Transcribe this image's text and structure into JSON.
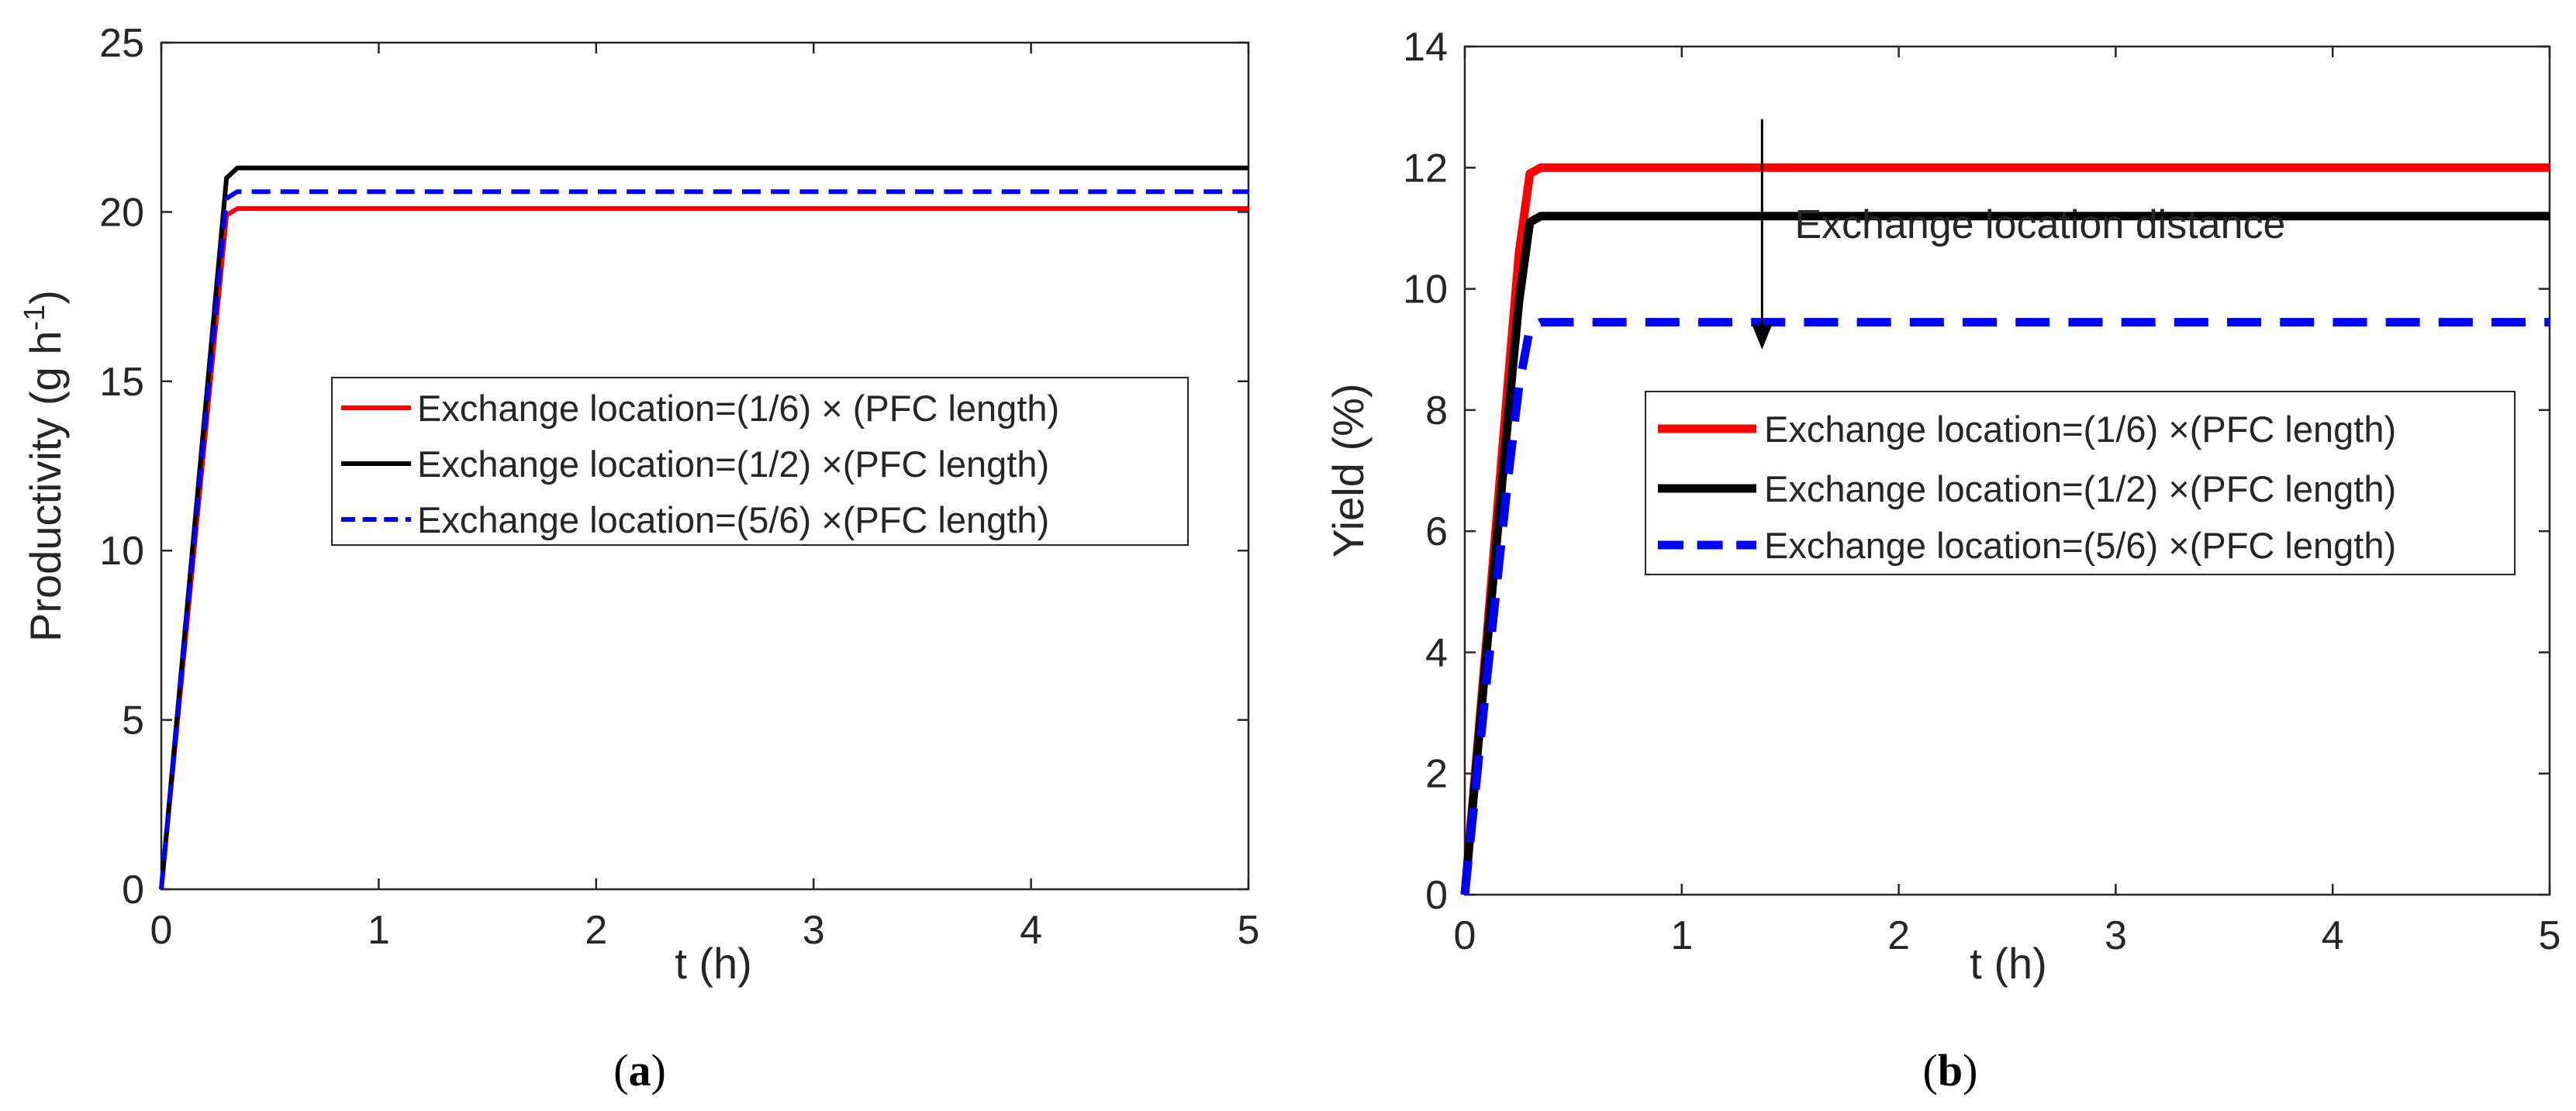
{
  "chart_data": [
    {
      "type": "line",
      "panel": "a",
      "caption": "a",
      "xlabel": "t (h)",
      "ylabel": "Productivity (g h",
      "ylabel_sup": "-1",
      "ylabel_close": ")",
      "xlim": [
        0,
        5
      ],
      "ylim": [
        0,
        25
      ],
      "xticks": [
        0,
        1,
        2,
        3,
        4,
        5
      ],
      "yticks": [
        0,
        5,
        10,
        15,
        20,
        25
      ],
      "grid": false,
      "legend_position": "center",
      "series": [
        {
          "name": "Exchange location=(1/6) × (PFC length)",
          "color": "#ff0000",
          "dash": "solid",
          "x": [
            0,
            0.3,
            0.35,
            5
          ],
          "y": [
            0,
            19.9,
            20.1,
            20.1
          ]
        },
        {
          "name": "Exchange location=(1/2) ×(PFC length)",
          "color": "#000000",
          "dash": "solid",
          "x": [
            0,
            0.3,
            0.35,
            5
          ],
          "y": [
            0,
            21.0,
            21.3,
            21.3
          ]
        },
        {
          "name": "Exchange location=(5/6) ×(PFC length)",
          "color": "#0000ff",
          "dash": "dashed",
          "x": [
            0,
            0.3,
            0.35,
            5
          ],
          "y": [
            0,
            20.4,
            20.6,
            20.6
          ]
        }
      ]
    },
    {
      "type": "line",
      "panel": "b",
      "caption": "b",
      "xlabel": "t (h)",
      "ylabel": "Yield (%)",
      "ylabel_sup": "",
      "ylabel_close": "",
      "xlim": [
        0,
        5
      ],
      "ylim": [
        0,
        14
      ],
      "xticks": [
        0,
        1,
        2,
        3,
        4,
        5
      ],
      "yticks": [
        0,
        2,
        4,
        6,
        8,
        10,
        12,
        14
      ],
      "grid": false,
      "legend_position": "center-right",
      "annotation": {
        "text": "Exchange location distance",
        "arrow_x": 1.37,
        "arrow_from_y": 12.8,
        "arrow_to_y": 9.0
      },
      "series": [
        {
          "name": "Exchange location=(1/6) ×(PFC length)",
          "color": "#ff0000",
          "dash": "solid",
          "x": [
            0,
            0.1,
            0.2,
            0.25,
            0.3,
            0.35,
            5
          ],
          "y": [
            0,
            4.2,
            8.5,
            10.6,
            11.9,
            12.0,
            12.0
          ]
        },
        {
          "name": "Exchange location=(1/2) ×(PFC length)",
          "color": "#000000",
          "dash": "solid",
          "x": [
            0,
            0.1,
            0.2,
            0.25,
            0.3,
            0.35,
            5
          ],
          "y": [
            0,
            4.0,
            7.9,
            9.8,
            11.1,
            11.2,
            11.2
          ]
        },
        {
          "name": "Exchange location=(5/6) ×(PFC length)",
          "color": "#0000ff",
          "dash": "dashed",
          "x": [
            0,
            0.1,
            0.2,
            0.25,
            0.3,
            0.35,
            5
          ],
          "y": [
            0,
            3.5,
            6.9,
            8.4,
            9.35,
            9.45,
            9.45
          ]
        }
      ]
    }
  ]
}
